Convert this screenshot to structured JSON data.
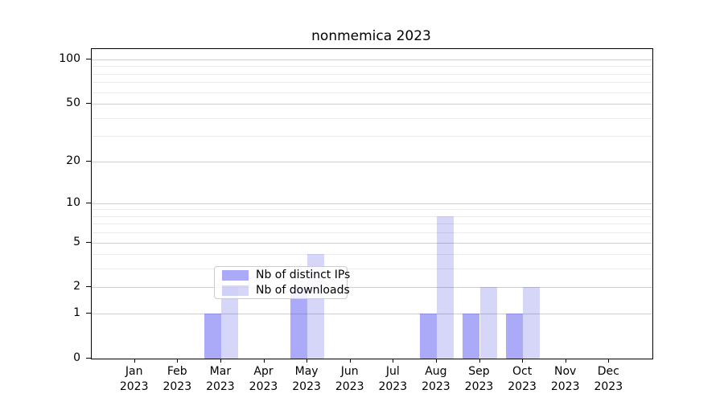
{
  "figure": {
    "title": "nonmemica 2023"
  },
  "colors": {
    "bar_distinct_ips": "rgba(62,62,240,0.44)",
    "bar_downloads": "rgba(52,52,220,0.20)",
    "grid_major": "#cfcfd4",
    "grid_minor": "#ebebee",
    "axis": "#000000"
  },
  "legend": {
    "items": [
      {
        "label": "Nb of distinct IPs",
        "series_key": "bar_distinct_ips"
      },
      {
        "label": "Nb of downloads",
        "series_key": "bar_downloads"
      }
    ]
  },
  "chart_data": {
    "type": "bar",
    "title": "nonmemica 2023",
    "categories": [
      "Jan",
      "Feb",
      "Mar",
      "Apr",
      "May",
      "Jun",
      "Jul",
      "Aug",
      "Sep",
      "Oct",
      "Nov",
      "Dec"
    ],
    "year_label": "2023",
    "series": [
      {
        "name": "Nb of distinct IPs",
        "key": "bar_distinct_ips",
        "values": [
          0,
          0,
          1,
          0,
          2,
          0,
          0,
          1,
          1,
          1,
          0,
          0
        ]
      },
      {
        "name": "Nb of downloads",
        "key": "bar_downloads",
        "values": [
          0,
          0,
          2,
          0,
          4,
          0,
          0,
          8,
          2,
          2,
          0,
          0
        ]
      }
    ],
    "yscale": "log1p",
    "ylim": [
      0,
      117.6
    ],
    "yticks_major": [
      0,
      1,
      2,
      5,
      10,
      20,
      50,
      100
    ],
    "yticks_minor": [
      3,
      4,
      6,
      7,
      8,
      9,
      30,
      40,
      60,
      70,
      80,
      90
    ],
    "grid": true,
    "legend_position": "lower center"
  }
}
